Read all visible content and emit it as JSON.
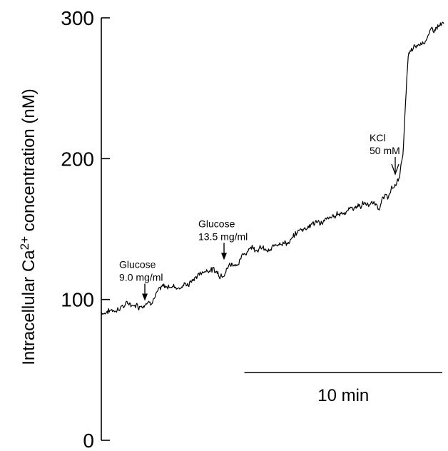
{
  "chart_data": {
    "type": "line",
    "ylabel": "Intracellular Ca",
    "ylabel_sup": "2+",
    "ylabel_rest": " concentration (nM)",
    "ylim": [
      0,
      300
    ],
    "yticks": [
      {
        "value": 0,
        "label": "0"
      },
      {
        "value": 100,
        "label": "100"
      },
      {
        "value": 200,
        "label": "200"
      },
      {
        "value": 300,
        "label": "300"
      }
    ],
    "x_unit": "min",
    "xlim": [
      0,
      17.3
    ],
    "grid": false,
    "series": [
      {
        "x": [
          0,
          0.5,
          1,
          1.5,
          2,
          2.5,
          3,
          3.5,
          4,
          4.5,
          5,
          5.5,
          6,
          6.5,
          7,
          7.5,
          8,
          8.5,
          9,
          9.5,
          10,
          10.5,
          11,
          11.5,
          12,
          12.5,
          13,
          13.5,
          14,
          14.5,
          15,
          15.25,
          15.5,
          16,
          16.5,
          17,
          17.3
        ],
        "y": [
          91,
          92,
          95,
          97,
          96,
          100,
          107,
          110,
          109,
          112,
          119,
          122,
          118,
          125,
          127,
          138,
          137,
          133,
          142,
          140,
          149,
          153,
          155,
          156,
          161,
          164,
          167,
          168,
          167,
          174,
          184,
          205,
          273,
          280,
          287,
          294,
          295
        ]
      }
    ],
    "annotations": [
      {
        "lines": [
          "Glucose",
          "9.0 mg/ml"
        ],
        "x": 2.2,
        "y": 96,
        "arrow": "solid"
      },
      {
        "lines": [
          "Glucose",
          "13.5 mg/ml"
        ],
        "x": 6.2,
        "y": 125,
        "arrow": "solid"
      },
      {
        "lines": [
          "KCl",
          "50 mM"
        ],
        "x": 14.85,
        "y": 186,
        "arrow": "open"
      }
    ],
    "scale_bar": {
      "label": "10 min",
      "duration": 10
    }
  }
}
